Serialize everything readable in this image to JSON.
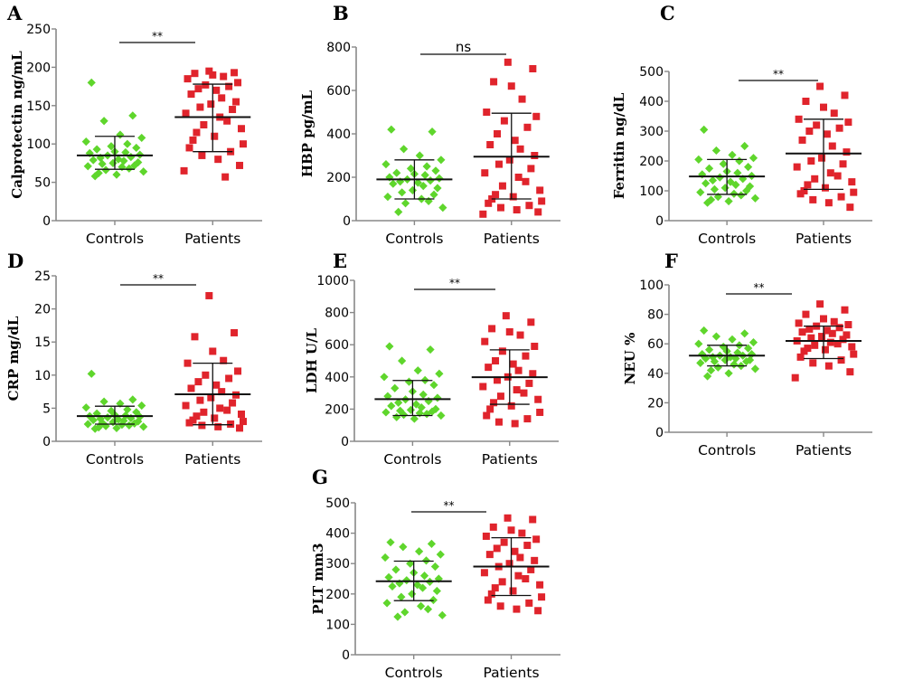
{
  "chart_data": [
    {
      "panel": "A",
      "type": "scatter",
      "ylabel": "Calprotectin ng/mL",
      "categories": [
        "Controls",
        "Patients"
      ],
      "ylim": [
        0,
        250
      ],
      "yticks": [
        0,
        50,
        100,
        150,
        200,
        250
      ],
      "significance": "**",
      "series": [
        {
          "mean": 85,
          "err": [
            67,
            110
          ],
          "values": [
            180,
            137,
            130,
            112,
            108,
            103,
            100,
            97,
            95,
            93,
            90,
            89,
            88,
            86,
            85,
            83,
            82,
            80,
            79,
            78,
            76,
            75,
            74,
            72,
            71,
            70,
            68,
            66,
            64,
            62,
            60,
            58
          ]
        },
        {
          "mean": 135,
          "err": [
            90,
            178
          ],
          "values": [
            195,
            193,
            192,
            190,
            188,
            185,
            180,
            177,
            175,
            172,
            170,
            165,
            160,
            155,
            152,
            148,
            145,
            140,
            135,
            130,
            125,
            120,
            115,
            110,
            105,
            100,
            95,
            90,
            85,
            80,
            72,
            65,
            57
          ]
        }
      ]
    },
    {
      "panel": "B",
      "type": "scatter",
      "ylabel": "HBP pg/mL",
      "categories": [
        "Controls",
        "Patients"
      ],
      "ylim": [
        0,
        800
      ],
      "yticks": [
        0,
        200,
        400,
        600,
        800
      ],
      "significance": "ns",
      "series": [
        {
          "mean": 190,
          "err": [
            100,
            280
          ],
          "values": [
            420,
            410,
            330,
            300,
            280,
            260,
            250,
            240,
            230,
            220,
            215,
            210,
            200,
            195,
            190,
            185,
            180,
            175,
            170,
            160,
            150,
            140,
            130,
            120,
            110,
            100,
            90,
            80,
            60,
            40
          ]
        },
        {
          "mean": 295,
          "err": [
            100,
            495
          ],
          "values": [
            730,
            700,
            640,
            620,
            560,
            500,
            480,
            460,
            430,
            400,
            370,
            350,
            330,
            300,
            280,
            260,
            240,
            220,
            200,
            180,
            160,
            140,
            120,
            110,
            100,
            90,
            80,
            70,
            60,
            50,
            40,
            30
          ]
        }
      ]
    },
    {
      "panel": "C",
      "type": "scatter",
      "ylabel": "Ferritin ng/dL",
      "categories": [
        "Controls",
        "Patients"
      ],
      "ylim": [
        0,
        500
      ],
      "yticks": [
        0,
        100,
        200,
        300,
        400,
        500
      ],
      "significance": "**",
      "series": [
        {
          "mean": 148,
          "err": [
            88,
            205
          ],
          "values": [
            305,
            250,
            235,
            220,
            210,
            205,
            200,
            190,
            180,
            175,
            165,
            160,
            155,
            150,
            145,
            140,
            135,
            130,
            125,
            120,
            115,
            110,
            105,
            100,
            95,
            90,
            85,
            80,
            75,
            70,
            65,
            60
          ]
        },
        {
          "mean": 225,
          "err": [
            105,
            340
          ],
          "values": [
            450,
            420,
            400,
            380,
            360,
            340,
            330,
            320,
            310,
            300,
            290,
            270,
            250,
            230,
            210,
            200,
            190,
            180,
            160,
            150,
            140,
            130,
            120,
            110,
            100,
            95,
            90,
            80,
            70,
            60,
            45
          ]
        }
      ]
    },
    {
      "panel": "D",
      "type": "scatter",
      "ylabel": "CRP mg/dL",
      "categories": [
        "Controls",
        "Patients"
      ],
      "ylim": [
        0,
        25
      ],
      "yticks": [
        0,
        5,
        10,
        15,
        20,
        25
      ],
      "significance": "**",
      "series": [
        {
          "mean": 3.8,
          "err": [
            2.6,
            5.3
          ],
          "values": [
            10.2,
            6.3,
            6.0,
            5.7,
            5.4,
            5.1,
            4.8,
            4.6,
            4.4,
            4.2,
            4.0,
            3.9,
            3.8,
            3.7,
            3.6,
            3.5,
            3.4,
            3.3,
            3.2,
            3.1,
            3.0,
            2.9,
            2.8,
            2.7,
            2.6,
            2.5,
            2.4,
            2.3,
            2.2,
            2.1,
            2.0,
            1.9
          ]
        },
        {
          "mean": 7.1,
          "err": [
            2.5,
            11.8
          ],
          "values": [
            22,
            16.4,
            15.8,
            13.6,
            12.2,
            11.8,
            10.6,
            10.0,
            9.5,
            9.0,
            8.5,
            8.0,
            7.5,
            7.0,
            6.6,
            6.2,
            5.8,
            5.4,
            5.0,
            4.7,
            4.4,
            4.1,
            3.8,
            3.5,
            3.2,
            3.0,
            2.8,
            2.6,
            2.4,
            2.2,
            2.0
          ]
        }
      ]
    },
    {
      "panel": "E",
      "type": "scatter",
      "ylabel": "LDH U/L",
      "categories": [
        "Controls",
        "Patients"
      ],
      "ylim": [
        0,
        1000
      ],
      "yticks": [
        0,
        200,
        400,
        600,
        800,
        1000
      ],
      "significance": "**",
      "series": [
        {
          "mean": 262,
          "err": [
            160,
            378
          ],
          "values": [
            590,
            570,
            500,
            440,
            420,
            400,
            380,
            370,
            350,
            330,
            310,
            290,
            280,
            270,
            260,
            250,
            240,
            230,
            220,
            210,
            200,
            195,
            190,
            185,
            180,
            175,
            170,
            165,
            160,
            150,
            140
          ]
        },
        {
          "mean": 398,
          "err": [
            230,
            568
          ],
          "values": [
            780,
            740,
            700,
            680,
            660,
            620,
            590,
            560,
            530,
            500,
            480,
            460,
            440,
            420,
            400,
            380,
            360,
            340,
            320,
            300,
            280,
            260,
            240,
            220,
            200,
            180,
            160,
            140,
            120,
            110
          ]
        }
      ]
    },
    {
      "panel": "F",
      "type": "scatter",
      "ylabel": "NEU %",
      "categories": [
        "Controls",
        "Patients"
      ],
      "ylim": [
        0,
        100
      ],
      "yticks": [
        0,
        20,
        40,
        60,
        80,
        100
      ],
      "significance": "**",
      "series": [
        {
          "mean": 52,
          "err": [
            45,
            59
          ],
          "values": [
            69,
            67,
            65,
            63,
            61,
            60,
            59,
            58,
            57,
            56,
            55,
            54,
            53,
            53,
            52,
            52,
            51,
            51,
            50,
            50,
            49,
            49,
            48,
            48,
            47,
            46,
            45,
            44,
            43,
            42,
            40,
            38
          ]
        },
        {
          "mean": 62,
          "err": [
            50,
            72
          ],
          "values": [
            87,
            83,
            80,
            77,
            75,
            74,
            73,
            72,
            71,
            70,
            69,
            68,
            67,
            66,
            65,
            64,
            63,
            62,
            61,
            60,
            59,
            58,
            57,
            56,
            55,
            53,
            51,
            49,
            47,
            45,
            41,
            37
          ]
        }
      ]
    },
    {
      "panel": "G",
      "type": "scatter",
      "ylabel": "PLT mm3",
      "categories": [
        "Controls",
        "Patients"
      ],
      "ylim": [
        0,
        500
      ],
      "yticks": [
        0,
        100,
        200,
        300,
        400,
        500
      ],
      "significance": "**",
      "series": [
        {
          "mean": 242,
          "err": [
            178,
            308
          ],
          "values": [
            370,
            365,
            355,
            340,
            330,
            320,
            310,
            300,
            290,
            280,
            270,
            260,
            255,
            250,
            245,
            240,
            235,
            230,
            225,
            220,
            210,
            200,
            190,
            180,
            170,
            160,
            150,
            140,
            130,
            125
          ]
        },
        {
          "mean": 290,
          "err": [
            195,
            385
          ],
          "values": [
            450,
            445,
            420,
            410,
            400,
            390,
            380,
            370,
            360,
            350,
            340,
            330,
            320,
            310,
            300,
            290,
            280,
            270,
            260,
            250,
            240,
            230,
            220,
            210,
            200,
            190,
            180,
            170,
            160,
            150,
            145
          ]
        }
      ]
    }
  ],
  "colors": {
    "controls": "#5fd62c",
    "patients": "#e0242c",
    "axis": "#888888",
    "mean_line": "#111111"
  }
}
